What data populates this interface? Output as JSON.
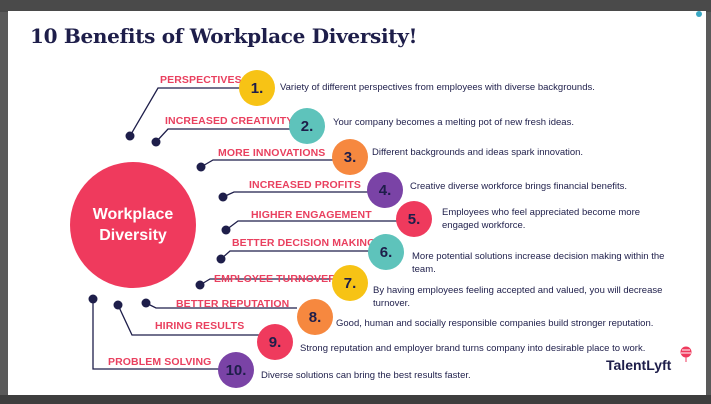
{
  "title": "10 Benefits of Workplace Diversity!",
  "hub": {
    "label": "Workplace Diversity"
  },
  "brand": {
    "name": "TalentLyft"
  },
  "benefits": [
    {
      "number": "1.",
      "label": "PERSPECTIVES",
      "description": "Variety of different perspectives from employees with diverse backgrounds.",
      "color": "#f7c315"
    },
    {
      "number": "2.",
      "label": "INCREASED CREATIVITY",
      "description": "Your company becomes a melting pot of new fresh ideas.",
      "color": "#5ec3bb"
    },
    {
      "number": "3.",
      "label": "MORE INNOVATIONS",
      "description": "Different backgrounds and ideas spark innovation.",
      "color": "#f6883f"
    },
    {
      "number": "4.",
      "label": "INCREASED PROFITS",
      "description": "Creative diverse workforce brings financial benefits.",
      "color": "#7a43a6"
    },
    {
      "number": "5.",
      "label": "HIGHER ENGAGEMENT",
      "description": "Employees who feel appreciated become more engaged workforce.",
      "color": "#ef3a5d"
    },
    {
      "number": "6.",
      "label": "BETTER DECISION MAKING",
      "description": "More potential solutions increase decision making within the team.",
      "color": "#5ec3bb"
    },
    {
      "number": "7.",
      "label": "EMPLOYEE TURNOVER",
      "description": "By having employees feeling accepted and valued, you will decrease turnover.",
      "color": "#f7c315"
    },
    {
      "number": "8.",
      "label": "BETTER REPUTATION",
      "description": "Good, human and socially responsible companies build stronger reputation.",
      "color": "#f6883f"
    },
    {
      "number": "9.",
      "label": "HIRING RESULTS",
      "description": "Strong reputation and employer brand turns company into desirable place to work.",
      "color": "#ef3a5d"
    },
    {
      "number": "10.",
      "label": "PROBLEM SOLVING",
      "description": "Diverse solutions can bring the best results faster.",
      "color": "#7a43a6"
    }
  ],
  "colors": {
    "heading": "#1e1e4a",
    "accent": "#e9405f",
    "connector": "#1e1e4a"
  }
}
